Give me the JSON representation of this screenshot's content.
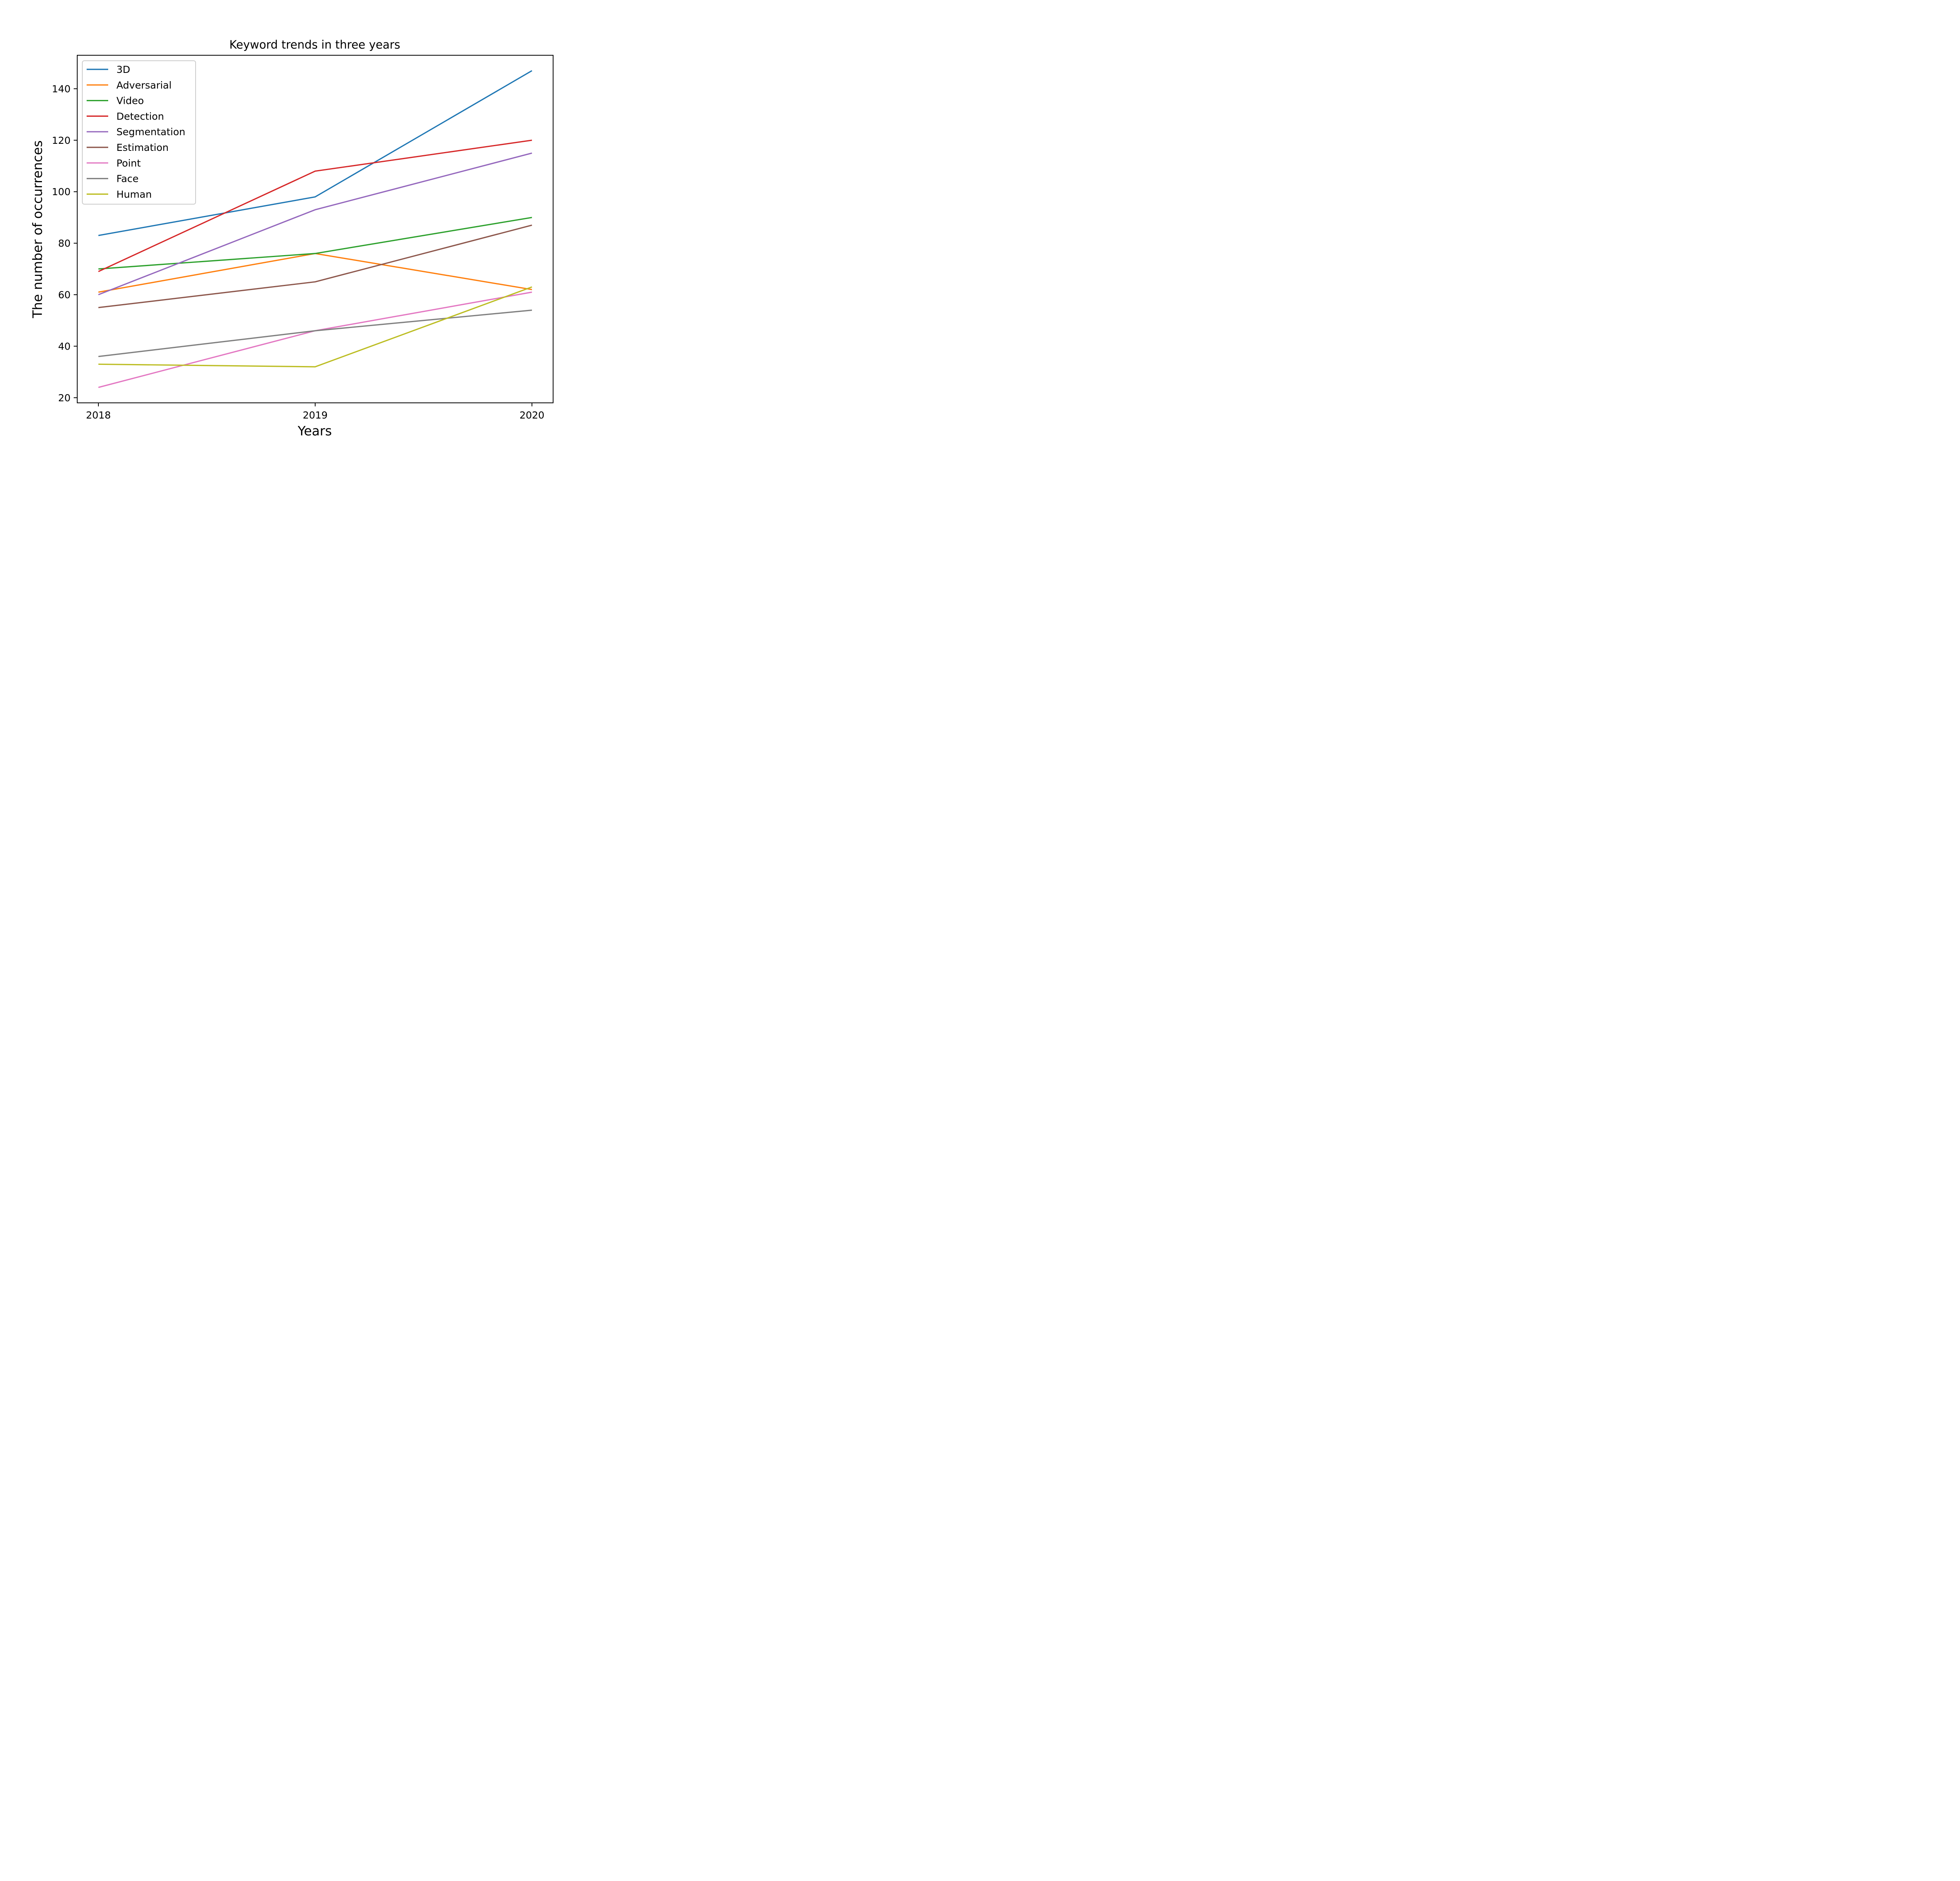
{
  "chart_data": {
    "type": "line",
    "title": "Keyword trends in three years",
    "xlabel": "Years",
    "ylabel": "The number of occurrences",
    "x": [
      "2018",
      "2019",
      "2020"
    ],
    "ylim": [
      18,
      153
    ],
    "yticks": [
      20,
      40,
      60,
      80,
      100,
      120,
      140
    ],
    "grid": false,
    "legend_position": "upper-left",
    "series": [
      {
        "name": "3D",
        "color": "#1f77b4",
        "values": [
          83,
          98,
          147
        ]
      },
      {
        "name": "Adversarial",
        "color": "#ff7f0e",
        "values": [
          61,
          76,
          62
        ]
      },
      {
        "name": "Video",
        "color": "#2ca02c",
        "values": [
          70,
          76,
          90
        ]
      },
      {
        "name": "Detection",
        "color": "#d62728",
        "values": [
          69,
          108,
          120
        ]
      },
      {
        "name": "Segmentation",
        "color": "#9467bd",
        "values": [
          60,
          93,
          115
        ]
      },
      {
        "name": "Estimation",
        "color": "#8c564b",
        "values": [
          55,
          65,
          87
        ]
      },
      {
        "name": "Point",
        "color": "#e377c2",
        "values": [
          24,
          46,
          61
        ]
      },
      {
        "name": "Face",
        "color": "#7f7f7f",
        "values": [
          36,
          46,
          54
        ]
      },
      {
        "name": "Human",
        "color": "#bcbd22",
        "values": [
          33,
          32,
          63
        ]
      }
    ]
  }
}
